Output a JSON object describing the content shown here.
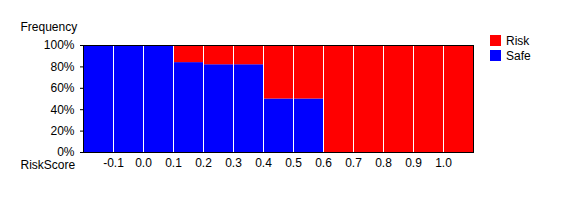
{
  "chart_data": {
    "type": "bar",
    "stacked": true,
    "xlabel": "RiskScore",
    "ylabel": "Frequency",
    "bins": [
      -0.2,
      -0.1,
      0,
      0.1,
      0.2,
      0.3,
      0.4,
      0.5,
      0.6,
      0.7,
      0.8,
      0.9,
      1.0,
      1.1
    ],
    "series": [
      {
        "name": "Risk",
        "color": "#ff0000",
        "values": [
          0,
          0,
          0,
          16,
          18,
          18,
          50,
          50,
          100,
          100,
          100,
          100,
          100
        ]
      },
      {
        "name": "Safe",
        "color": "#0000ff",
        "values": [
          100,
          100,
          100,
          84,
          82,
          82,
          50,
          50,
          0,
          0,
          0,
          0,
          0
        ]
      }
    ],
    "xlim": [
      -0.2,
      1.1
    ],
    "xticks": [
      -0.1,
      {
        "value": 0,
        "label": "0.0"
      },
      0.1,
      0.2,
      0.3,
      0.4,
      0.5,
      0.6,
      0.7,
      0.8,
      0.9,
      {
        "value": 1,
        "label": "1.0"
      }
    ],
    "ylim": [
      0,
      100
    ],
    "yticks": [
      {
        "value": 0,
        "label": "0%"
      },
      {
        "value": 20,
        "label": "20%"
      },
      {
        "value": 40,
        "label": "40%"
      },
      {
        "value": 60,
        "label": "60%"
      },
      {
        "value": 80,
        "label": "80%"
      },
      {
        "value": 100,
        "label": "100%"
      }
    ],
    "grid": false,
    "legend": "top-right"
  }
}
